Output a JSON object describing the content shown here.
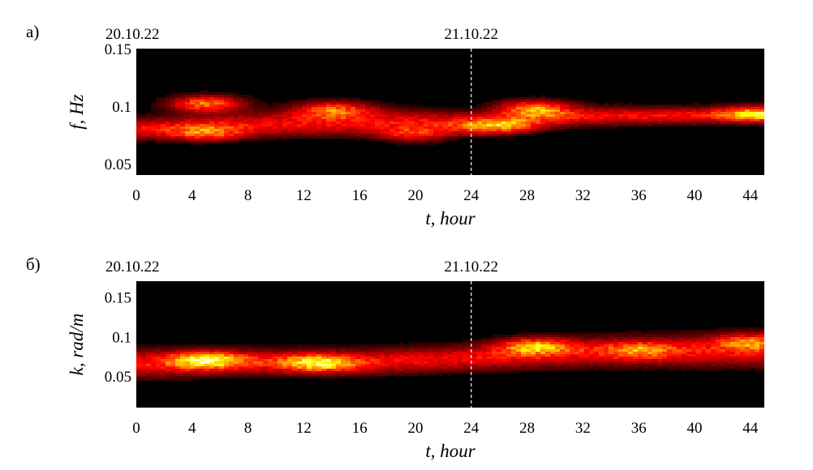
{
  "chart_data": [
    {
      "type": "heatmap",
      "panel_label": "а)",
      "date_labels": [
        {
          "text": "20.10.22",
          "t": 0
        },
        {
          "text": "21.10.22",
          "t": 24
        }
      ],
      "xlabel": "t, hour",
      "ylabel": "f, Hz",
      "xlim": [
        0,
        45
      ],
      "ylim": [
        0.04,
        0.15
      ],
      "xticks": [
        0,
        4,
        8,
        12,
        16,
        20,
        24,
        28,
        32,
        36,
        40,
        44
      ],
      "yticks": [
        0.05,
        0.1,
        0.15
      ],
      "ytick_labels": [
        "0.05",
        "0.1",
        "0.15"
      ],
      "divider_t": 24,
      "colormap": "hot",
      "ridge": [
        {
          "t": 0,
          "low": 0.07,
          "high": 0.09
        },
        {
          "t": 8,
          "low": 0.072,
          "high": 0.095
        },
        {
          "t": 16,
          "low": 0.073,
          "high": 0.1
        },
        {
          "t": 24,
          "low": 0.075,
          "high": 0.095
        },
        {
          "t": 32,
          "low": 0.082,
          "high": 0.1
        },
        {
          "t": 45,
          "low": 0.085,
          "high": 0.1
        }
      ],
      "hotspots": [
        {
          "t": 5,
          "y": 0.102,
          "intensity": 1.0
        },
        {
          "t": 14,
          "y": 0.097,
          "intensity": 0.75
        },
        {
          "t": 28.5,
          "y": 0.098,
          "intensity": 0.95
        },
        {
          "t": 26,
          "y": 0.082,
          "intensity": 0.7
        },
        {
          "t": 44.5,
          "y": 0.093,
          "intensity": 0.7
        },
        {
          "t": 20,
          "y": 0.075,
          "intensity": 0.55
        },
        {
          "t": 5,
          "y": 0.076,
          "intensity": 0.6
        }
      ]
    },
    {
      "type": "heatmap",
      "panel_label": "б)",
      "date_labels": [
        {
          "text": "20.10.22",
          "t": 0
        },
        {
          "text": "21.10.22",
          "t": 24
        }
      ],
      "xlabel": "t, hour",
      "ylabel": "k, rad/m",
      "xlim": [
        0,
        45
      ],
      "ylim": [
        0.01,
        0.17
      ],
      "xticks": [
        0,
        4,
        8,
        12,
        16,
        20,
        24,
        28,
        32,
        36,
        40,
        44
      ],
      "yticks": [
        0.05,
        0.1,
        0.15
      ],
      "ytick_labels": [
        "0.05",
        "0.1",
        "0.15"
      ],
      "divider_t": 24,
      "colormap": "hot",
      "ridge": [
        {
          "t": 0,
          "low": 0.045,
          "high": 0.085
        },
        {
          "t": 8,
          "low": 0.05,
          "high": 0.085
        },
        {
          "t": 16,
          "low": 0.05,
          "high": 0.085
        },
        {
          "t": 24,
          "low": 0.055,
          "high": 0.09
        },
        {
          "t": 32,
          "low": 0.06,
          "high": 0.1
        },
        {
          "t": 45,
          "low": 0.06,
          "high": 0.105
        }
      ],
      "hotspots": [
        {
          "t": 5,
          "y": 0.07,
          "intensity": 0.95
        },
        {
          "t": 13,
          "y": 0.066,
          "intensity": 0.85
        },
        {
          "t": 28.5,
          "y": 0.088,
          "intensity": 0.85
        },
        {
          "t": 36,
          "y": 0.083,
          "intensity": 0.5
        },
        {
          "t": 44,
          "y": 0.093,
          "intensity": 0.6
        }
      ]
    }
  ]
}
